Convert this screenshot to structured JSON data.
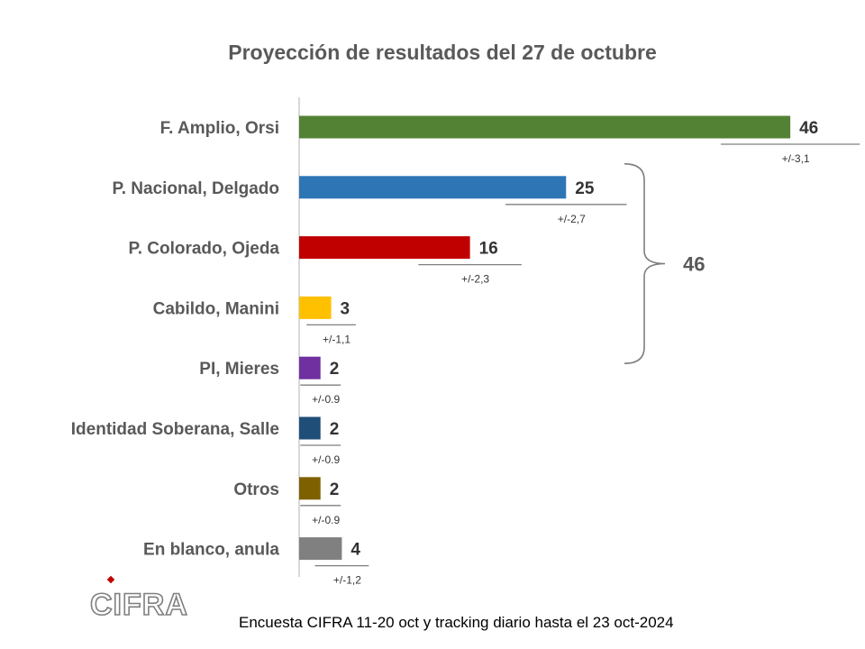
{
  "chart_data": {
    "type": "bar",
    "orientation": "horizontal",
    "title": "Proyección de resultados del 27 de octubre",
    "categories": [
      "F. Amplio, Orsi",
      "P. Nacional, Delgado",
      "P. Colorado, Ojeda",
      "Cabildo, Manini",
      "PI, Mieres",
      "Identidad Soberana, Salle",
      "Otros",
      "En blanco, anula"
    ],
    "values": [
      46,
      25,
      16,
      3,
      2,
      2,
      2,
      4
    ],
    "value_labels": [
      "46",
      "25",
      "16",
      "3",
      "2",
      "2",
      "2",
      "4"
    ],
    "error_labels": [
      "+/-3,1",
      "+/-2,7",
      "+/-2,3",
      "+/-1,1",
      "+/-0.9",
      "+/-0.9",
      "+/-0.9",
      "+/-1,2"
    ],
    "colors": [
      "#548235",
      "#2e75b6",
      "#c00000",
      "#ffc000",
      "#7030a0",
      "#1f4e79",
      "#7f6000",
      "#808080"
    ],
    "xlim": [
      0,
      50
    ],
    "grid": false,
    "legend": "none",
    "bracket": {
      "from_category": "P. Nacional, Delgado",
      "to_category": "PI, Mieres",
      "label": "46"
    }
  },
  "source_note": "Encuesta CIFRA  11-20 oct y tracking diario hasta el 23 oct-2024",
  "logo": {
    "text": "CIFRA",
    "accent_color": "#c00000"
  }
}
